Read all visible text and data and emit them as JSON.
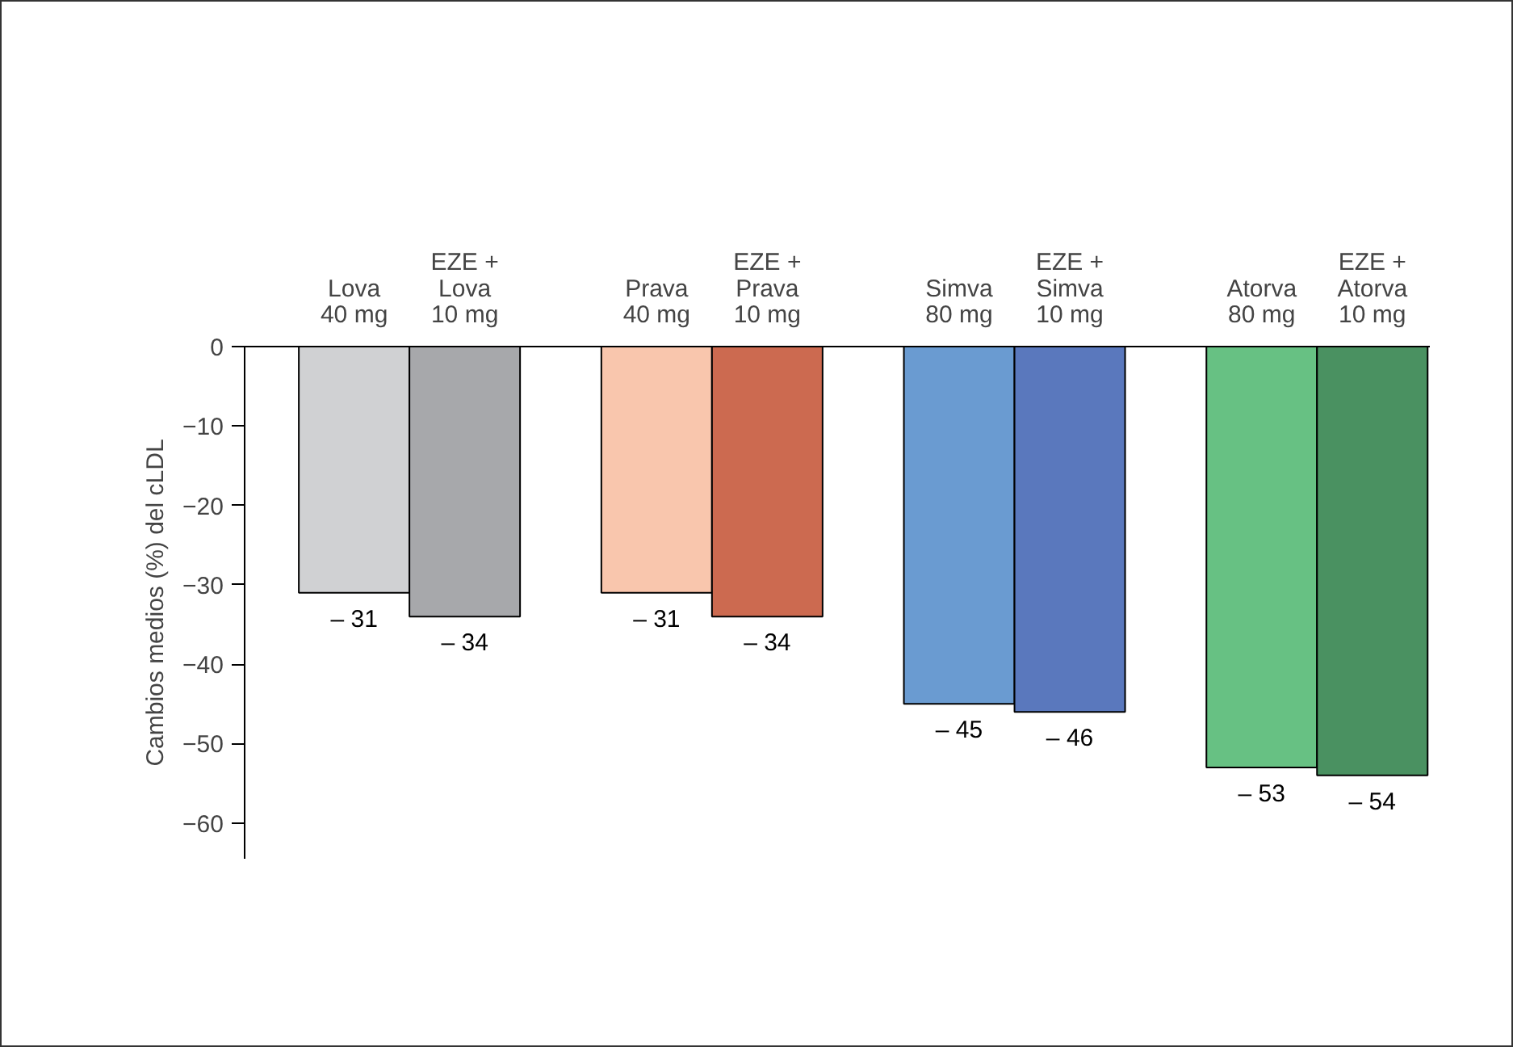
{
  "chart_data": {
    "type": "bar",
    "ylabel": "Cambios medios (%) del cLDL",
    "categories": [
      "Lova\n40 mg",
      "EZE +\nLova\n10 mg",
      "Prava\n40 mg",
      "EZE +\nPrava\n10 mg",
      "Simva\n80 mg",
      "EZE +\nSimva\n10 mg",
      "Atorva\n80 mg",
      "EZE +\nAtorva\n10 mg"
    ],
    "values": [
      -31,
      -34,
      -31,
      -34,
      -45,
      -46,
      -53,
      -54
    ],
    "value_labels": [
      "– 31",
      "– 34",
      "– 31",
      "– 34",
      "– 45",
      "– 46",
      "– 53",
      "– 54"
    ],
    "colors": [
      "#d0d1d3",
      "#a7a8ab",
      "#f9c6ad",
      "#cc6a50",
      "#6a9bd1",
      "#5a78bd",
      "#67c183",
      "#4a9161"
    ],
    "ylim": [
      -64.5,
      0
    ],
    "yticks": [
      0,
      {
        "value": -10,
        "label": "−10"
      },
      {
        "value": -20,
        "label": "−20"
      },
      {
        "value": -30,
        "label": "−30"
      },
      {
        "value": -40,
        "label": "−40"
      },
      {
        "value": -50,
        "label": "−50"
      },
      {
        "value": -60,
        "label": "−60"
      }
    ],
    "grid": false
  }
}
